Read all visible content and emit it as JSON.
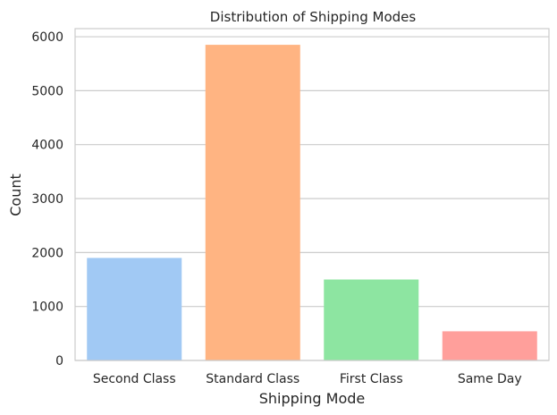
{
  "chart_data": {
    "type": "bar",
    "title": "Distribution of Shipping Modes",
    "xlabel": "Shipping Mode",
    "ylabel": "Count",
    "categories": [
      "Second Class",
      "Standard Class",
      "First Class",
      "Same Day"
    ],
    "values": [
      1900,
      5850,
      1500,
      540
    ],
    "colors": [
      "#a1c9f4",
      "#ffb482",
      "#8de5a1",
      "#ff9f9b"
    ],
    "ylim": [
      0,
      6150
    ],
    "yticks": [
      0,
      1000,
      2000,
      3000,
      4000,
      5000,
      6000
    ],
    "grid": "horizontal",
    "legend": "none"
  }
}
